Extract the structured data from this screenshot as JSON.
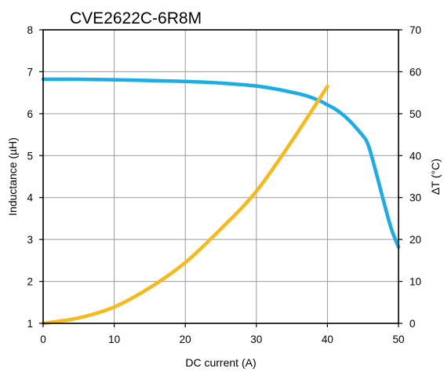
{
  "chart_data": {
    "type": "line",
    "title": "CVE2622C-6R8M",
    "xlabel": "DC current (A)",
    "ylabel": "Inductance (µH)",
    "y2label": "∆T (°C)",
    "xlim": [
      0,
      50
    ],
    "ylim": [
      1,
      8
    ],
    "y2lim": [
      0,
      70
    ],
    "x_ticks": [
      "0",
      "10",
      "20",
      "30",
      "40",
      "50"
    ],
    "y_ticks": [
      "1",
      "2",
      "3",
      "4",
      "5",
      "6",
      "7",
      "8"
    ],
    "y2_ticks": [
      "0",
      "10",
      "20",
      "30",
      "40",
      "50",
      "60",
      "70"
    ],
    "grid": true,
    "series": [
      {
        "axis": "left",
        "color": "#1AADE6",
        "x": [
          0,
          5,
          10,
          15,
          20,
          25,
          30,
          33,
          35,
          37,
          39,
          40,
          41,
          42,
          43,
          44,
          45,
          45.5,
          46,
          47,
          48,
          49,
          50
        ],
        "y": [
          6.82,
          6.82,
          6.81,
          6.79,
          6.77,
          6.73,
          6.66,
          6.58,
          6.51,
          6.43,
          6.3,
          6.21,
          6.12,
          6.0,
          5.85,
          5.67,
          5.47,
          5.35,
          5.12,
          4.5,
          3.85,
          3.25,
          2.82
        ]
      },
      {
        "axis": "right",
        "color": "#F7BA1C",
        "x": [
          0,
          5,
          10,
          15,
          20,
          25,
          30,
          35,
          40
        ],
        "y": [
          0,
          1.3,
          3.9,
          8.5,
          14.5,
          22.5,
          31.5,
          43.5,
          56.5
        ]
      }
    ]
  }
}
